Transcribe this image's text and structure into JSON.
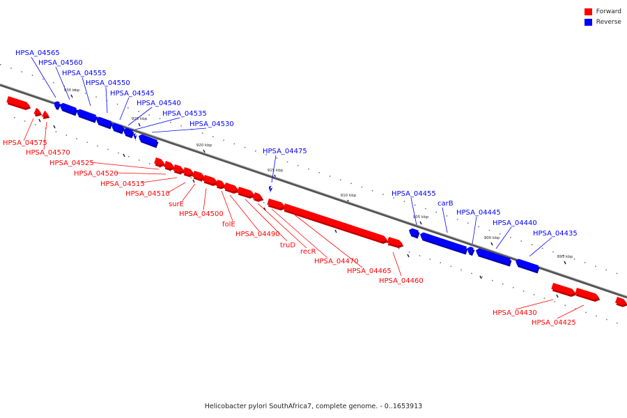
{
  "legend": {
    "forward_label": "Forward",
    "reverse_label": "Reverse",
    "forward_color": "#ff0000",
    "reverse_color": "#0000ff"
  },
  "caption": "Helicobacter pylori SouthAfrica7, complete genome. - 0..1653913",
  "axis": {
    "tick_labels": [
      "930 kbp",
      "925 kbp",
      "920 kbp",
      "915 kbp",
      "910 kbp",
      "905 kbp",
      "900 kbp",
      "895 kbp"
    ]
  },
  "genes": {
    "reverse": [
      "HPSA_04565",
      "HPSA_04560",
      "HPSA_04555",
      "HPSA_04550",
      "HPSA_04545",
      "HPSA_04540",
      "HPSA_04535",
      "HPSA_04530",
      "HPSA_04475",
      "HPSA_04455",
      "carB",
      "HPSA_04445",
      "HPSA_04440",
      "HPSA_04435"
    ],
    "forward": [
      "HPSA_04575",
      "HPSA_04570",
      "HPSA_04525",
      "HPSA_04520",
      "HPSA_04515",
      "HPSA_04510",
      "surE",
      "HPSA_04500",
      "folE",
      "HPSA_04490",
      "truD",
      "recR",
      "HPSA_04470",
      "HPSA_04465",
      "HPSA_04460",
      "HPSA_04430",
      "HPSA_04425"
    ]
  }
}
